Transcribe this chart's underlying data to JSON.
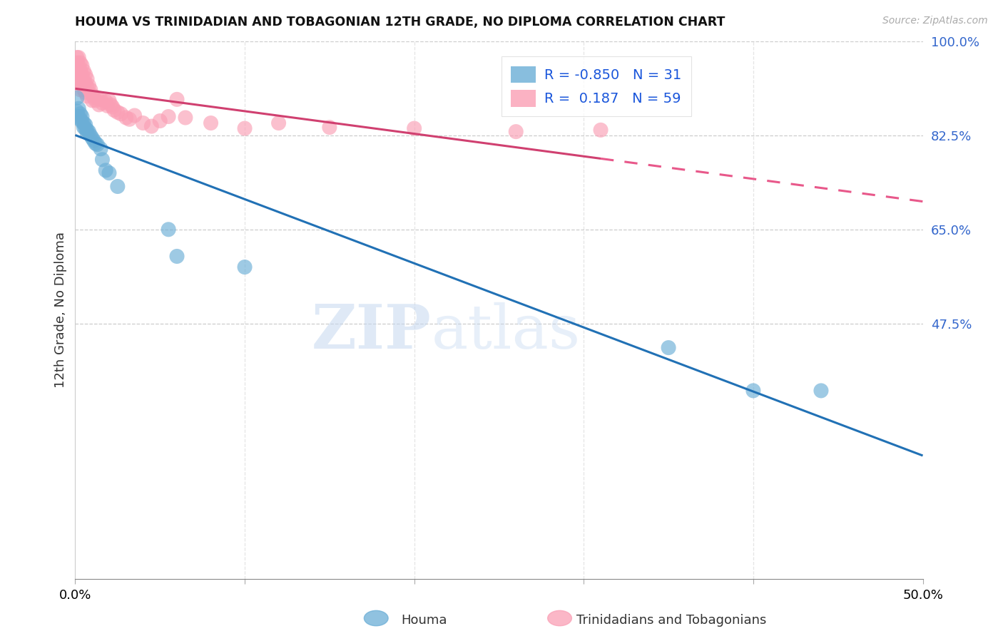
{
  "title": "HOUMA VS TRINIDADIAN AND TOBAGONIAN 12TH GRADE, NO DIPLOMA CORRELATION CHART",
  "source": "Source: ZipAtlas.com",
  "ylabel": "12th Grade, No Diploma",
  "xlim": [
    0.0,
    0.5
  ],
  "ylim": [
    0.0,
    1.0
  ],
  "yticks_right": [
    0.475,
    0.65,
    0.825,
    1.0
  ],
  "ytick_labels_right": [
    "47.5%",
    "65.0%",
    "82.5%",
    "100.0%"
  ],
  "legend_houma_R": "-0.850",
  "legend_houma_N": "31",
  "legend_trin_R": "0.187",
  "legend_trin_N": "59",
  "houma_color": "#6baed6",
  "trin_color": "#fa9fb5",
  "houma_line_color": "#2171b5",
  "trin_line_color": "#e8588a",
  "trin_line_solid_color": "#d04070",
  "watermark_zip": "ZIP",
  "watermark_atlas": "atlas",
  "background_color": "#ffffff",
  "houma_scatter_x": [
    0.001,
    0.001,
    0.002,
    0.002,
    0.003,
    0.003,
    0.004,
    0.004,
    0.005,
    0.005,
    0.006,
    0.006,
    0.007,
    0.007,
    0.008,
    0.009,
    0.01,
    0.011,
    0.012,
    0.013,
    0.015,
    0.016,
    0.018,
    0.02,
    0.025,
    0.055,
    0.06,
    0.1,
    0.35,
    0.4,
    0.44
  ],
  "houma_scatter_y": [
    0.895,
    0.87,
    0.875,
    0.86,
    0.865,
    0.855,
    0.86,
    0.85,
    0.848,
    0.84,
    0.845,
    0.838,
    0.835,
    0.83,
    0.832,
    0.825,
    0.82,
    0.815,
    0.81,
    0.808,
    0.8,
    0.78,
    0.76,
    0.755,
    0.73,
    0.65,
    0.6,
    0.58,
    0.43,
    0.35,
    0.35
  ],
  "trin_scatter_x": [
    0.001,
    0.001,
    0.001,
    0.001,
    0.002,
    0.002,
    0.002,
    0.002,
    0.003,
    0.003,
    0.003,
    0.003,
    0.003,
    0.004,
    0.004,
    0.004,
    0.005,
    0.005,
    0.005,
    0.006,
    0.006,
    0.006,
    0.007,
    0.007,
    0.007,
    0.008,
    0.009,
    0.01,
    0.01,
    0.011,
    0.012,
    0.013,
    0.014,
    0.015,
    0.016,
    0.018,
    0.019,
    0.02,
    0.021,
    0.022,
    0.023,
    0.025,
    0.027,
    0.03,
    0.032,
    0.035,
    0.04,
    0.045,
    0.05,
    0.055,
    0.06,
    0.065,
    0.08,
    0.1,
    0.12,
    0.15,
    0.2,
    0.26,
    0.31
  ],
  "trin_scatter_y": [
    0.97,
    0.96,
    0.95,
    0.94,
    0.97,
    0.955,
    0.94,
    0.925,
    0.96,
    0.945,
    0.93,
    0.92,
    0.91,
    0.955,
    0.938,
    0.92,
    0.945,
    0.928,
    0.91,
    0.938,
    0.922,
    0.905,
    0.93,
    0.915,
    0.898,
    0.918,
    0.91,
    0.9,
    0.89,
    0.895,
    0.89,
    0.895,
    0.882,
    0.892,
    0.885,
    0.888,
    0.88,
    0.89,
    0.882,
    0.878,
    0.872,
    0.868,
    0.865,
    0.858,
    0.855,
    0.862,
    0.848,
    0.842,
    0.852,
    0.86,
    0.892,
    0.858,
    0.848,
    0.838,
    0.848,
    0.84,
    0.838,
    0.832,
    0.835
  ]
}
